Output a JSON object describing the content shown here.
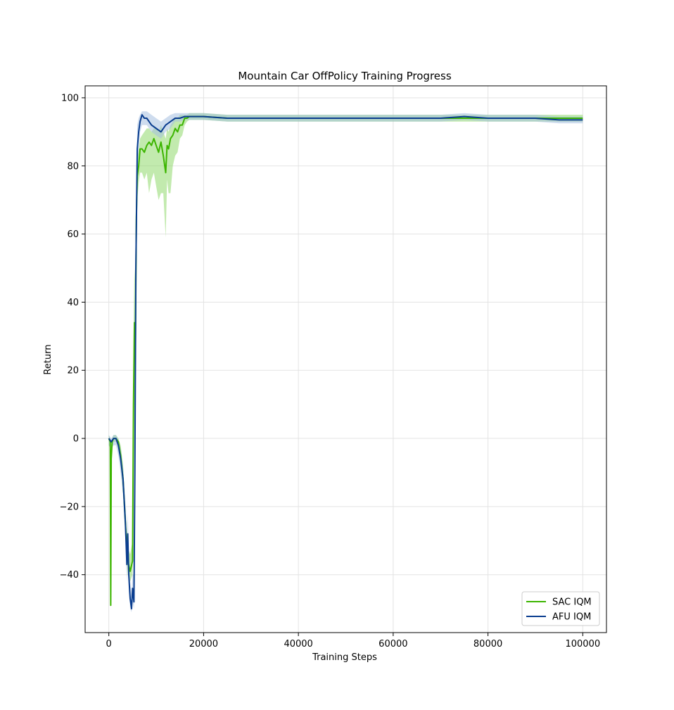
{
  "chart_data": {
    "type": "line",
    "title": "Mountain Car OffPolicy Training Progress",
    "xlabel": "Training Steps",
    "ylabel": "Return",
    "xlim": [
      -5000,
      105000
    ],
    "ylim": [
      -57,
      103.5
    ],
    "xticks": [
      0,
      20000,
      40000,
      60000,
      80000,
      100000
    ],
    "yticks": [
      -40,
      -20,
      0,
      20,
      40,
      60,
      80,
      100
    ],
    "grid": true,
    "legend_position": "lower-right",
    "series": [
      {
        "name": "SAC IQM",
        "color": "#2ca02c",
        "line_color": "#3cb500",
        "band_color": "#8fd96b",
        "x": [
          0,
          300,
          400,
          500,
          700,
          1000,
          1500,
          2000,
          2500,
          3000,
          3500,
          4000,
          4500,
          5000,
          5200,
          5400,
          5600,
          5800,
          6000,
          6300,
          6600,
          7000,
          7500,
          8000,
          8500,
          9000,
          9500,
          10000,
          10500,
          11000,
          11500,
          12000,
          12300,
          12600,
          13000,
          13500,
          14000,
          14500,
          15000,
          15500,
          16000,
          16500,
          17000,
          18000,
          20000,
          25000,
          30000,
          40000,
          50000,
          60000,
          70000,
          80000,
          90000,
          100000
        ],
        "y": [
          0,
          -1,
          -49,
          -6,
          -1,
          0,
          0,
          -1,
          -5,
          -12,
          -25,
          -36,
          -39,
          -36,
          10,
          34,
          25,
          65,
          77,
          80,
          85,
          85,
          84,
          86,
          87,
          86,
          88,
          86,
          84,
          87,
          83,
          78,
          86,
          85,
          88,
          89,
          91,
          90,
          92,
          92,
          94,
          94,
          94.5,
          94.5,
          94.5,
          94,
          94,
          94,
          94,
          94,
          94,
          94,
          94,
          94
        ],
        "band_lower": [
          -2,
          -3,
          -50,
          -10,
          -3,
          -1,
          -1,
          -3,
          -8,
          -16,
          -30,
          -40,
          -42,
          -40,
          -10,
          10,
          5,
          50,
          70,
          75,
          78,
          78,
          76,
          78,
          72,
          76,
          78,
          74,
          70,
          72,
          72,
          59,
          76,
          72,
          72,
          80,
          83,
          84,
          88,
          89,
          92,
          93,
          93.5,
          93.5,
          93.5,
          93,
          93,
          93,
          93,
          93,
          93,
          93,
          93,
          93
        ],
        "band_upper": [
          1,
          0,
          -47,
          -2,
          0,
          1,
          1,
          0,
          -2,
          -8,
          -20,
          -32,
          -34,
          -30,
          30,
          50,
          45,
          75,
          82,
          85,
          88,
          89,
          90,
          91,
          91,
          90,
          91,
          91,
          90,
          92,
          90,
          88,
          91,
          90,
          92,
          93,
          94,
          94,
          95,
          95,
          95,
          95,
          95.5,
          95.5,
          95.5,
          95,
          95,
          95,
          95,
          95,
          95,
          95,
          95,
          95
        ]
      },
      {
        "name": "AFU IQM",
        "color": "#1f4e9c",
        "line_color": "#0a3d8f",
        "band_color": "#a5bfe0",
        "x": [
          0,
          500,
          1000,
          1500,
          2000,
          2500,
          3000,
          3500,
          3800,
          4000,
          4200,
          4500,
          4800,
          5000,
          5300,
          5500,
          5700,
          6000,
          6300,
          6600,
          7000,
          7500,
          8000,
          9000,
          10000,
          11000,
          12000,
          13000,
          14000,
          15000,
          16000,
          18000,
          20000,
          25000,
          30000,
          40000,
          50000,
          60000,
          70000,
          75000,
          80000,
          90000,
          95000,
          100000
        ],
        "y": [
          0,
          -1,
          0,
          0,
          -2,
          -6,
          -12,
          -25,
          -37,
          -28,
          -40,
          -47,
          -50,
          -44,
          -48,
          -10,
          50,
          85,
          90,
          93,
          95,
          94,
          94,
          92,
          91,
          90,
          92,
          93,
          94,
          94,
          94.5,
          94.5,
          94.5,
          94,
          94,
          94,
          94,
          94,
          94,
          94.5,
          94,
          94,
          93.5,
          93.5
        ],
        "band_lower": [
          -2,
          -3,
          -2,
          -2,
          -5,
          -10,
          -17,
          -30,
          -42,
          -33,
          -45,
          -50,
          -51,
          -48,
          -50,
          -20,
          30,
          72,
          85,
          90,
          92,
          92,
          92,
          90,
          89,
          88,
          90,
          91,
          93,
          93,
          93.5,
          93.5,
          93.5,
          93,
          93,
          93,
          93,
          93,
          93,
          93.5,
          93,
          93,
          92.5,
          92.5
        ],
        "band_upper": [
          1,
          0,
          1,
          1,
          0,
          -3,
          -8,
          -20,
          -30,
          -22,
          -34,
          -42,
          -46,
          -40,
          -40,
          5,
          70,
          92,
          94,
          95,
          96,
          96,
          96,
          95,
          94,
          93,
          94,
          95,
          95.5,
          95.5,
          95.5,
          95.5,
          95.5,
          95,
          95,
          95,
          95,
          95,
          95,
          95.5,
          95,
          95,
          94.5,
          94.5
        ]
      }
    ]
  }
}
